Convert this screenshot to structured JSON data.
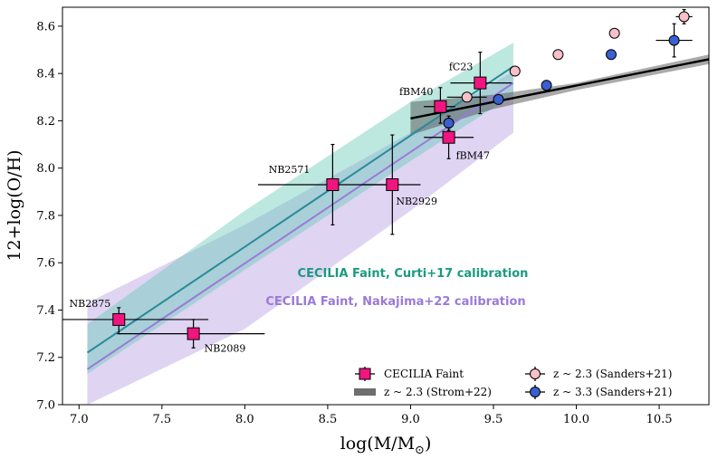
{
  "chart_data": {
    "type": "scatter",
    "xlabel": "log(M/M",
    "xlabel_sub": "⊙",
    "xlabel_close": ")",
    "ylabel": "12+log(O/H)",
    "xlim": [
      6.9,
      10.8
    ],
    "ylim": [
      7.0,
      8.68
    ],
    "xticks": [
      "7.0",
      "7.5",
      "8.0",
      "8.5",
      "9.0",
      "9.5",
      "10.0",
      "10.5"
    ],
    "yticks": [
      "7.0",
      "7.2",
      "7.4",
      "7.6",
      "7.8",
      "8.0",
      "8.2",
      "8.4",
      "8.6"
    ],
    "colors": {
      "cecilia": "#f0157f",
      "curti": "#1a9a80",
      "curti_line": "#2a8a9a",
      "nakajima": "#9a7ad8",
      "strom": "#555555",
      "sanders23": "#f8c0c8",
      "sanders33": "#3a5fd0"
    },
    "cecilia_points": [
      {
        "label": "NB2875",
        "x": 7.24,
        "y": 7.36,
        "xerr": [
          0.34,
          0.54
        ],
        "yerr": [
          0.06,
          0.05
        ]
      },
      {
        "label": "NB2089",
        "x": 7.69,
        "y": 7.3,
        "xerr": [
          0.45,
          0.43
        ],
        "yerr": [
          0.06,
          0.06
        ]
      },
      {
        "label": "NB2571",
        "x": 8.53,
        "y": 7.93,
        "xerr": [
          0.45,
          0.36
        ],
        "yerr": [
          0.17,
          0.17
        ]
      },
      {
        "label": "NB2929",
        "x": 8.89,
        "y": 7.93,
        "xerr": [
          0.18,
          0.17
        ],
        "yerr": [
          0.21,
          0.21
        ]
      },
      {
        "label": "fBM40",
        "x": 9.18,
        "y": 8.26,
        "xerr": [
          0.1,
          0.09
        ],
        "yerr": [
          0.07,
          0.08
        ]
      },
      {
        "label": "fBM47",
        "x": 9.23,
        "y": 8.13,
        "xerr": [
          0.15,
          0.15
        ],
        "yerr": [
          0.09,
          0.04
        ]
      },
      {
        "label": "fC23",
        "x": 9.42,
        "y": 8.36,
        "xerr": [
          0.18,
          0.19
        ],
        "yerr": [
          0.13,
          0.13
        ]
      }
    ],
    "sanders23": [
      {
        "x": 9.34,
        "y": 8.3,
        "xerr": [
          0.12,
          0.12
        ],
        "yerr": [
          0.01,
          0.01
        ]
      },
      {
        "x": 9.63,
        "y": 8.41,
        "xerr": [
          0.0,
          0.0
        ],
        "yerr": [
          0.01,
          0.01
        ]
      },
      {
        "x": 9.89,
        "y": 8.48,
        "xerr": [
          0.0,
          0.0
        ],
        "yerr": [
          0.01,
          0.01
        ]
      },
      {
        "x": 10.23,
        "y": 8.57,
        "xerr": [
          0.0,
          0.0
        ],
        "yerr": [
          0.01,
          0.01
        ]
      },
      {
        "x": 10.65,
        "y": 8.64,
        "xerr": [
          0.05,
          0.05
        ],
        "yerr": [
          0.03,
          0.03
        ]
      }
    ],
    "sanders33": [
      {
        "x": 9.23,
        "y": 8.19,
        "xerr": [
          0.0,
          0.0
        ],
        "yerr": [
          0.03,
          0.03
        ]
      },
      {
        "x": 9.53,
        "y": 8.29,
        "xerr": [
          0.0,
          0.0
        ],
        "yerr": [
          0.01,
          0.01
        ]
      },
      {
        "x": 9.82,
        "y": 8.35,
        "xerr": [
          0.0,
          0.0
        ],
        "yerr": [
          0.02,
          0.02
        ]
      },
      {
        "x": 10.21,
        "y": 8.48,
        "xerr": [
          0.0,
          0.0
        ],
        "yerr": [
          0.01,
          0.01
        ]
      },
      {
        "x": 10.59,
        "y": 8.54,
        "xerr": [
          0.11,
          0.11
        ],
        "yerr": [
          0.07,
          0.07
        ]
      }
    ],
    "strom_line": {
      "x": [
        9.0,
        10.8
      ],
      "y": [
        8.21,
        8.46
      ]
    },
    "strom_band_upper": {
      "x": [
        9.0,
        9.5,
        10.0,
        10.8
      ],
      "y": [
        8.28,
        8.31,
        8.36,
        8.48
      ]
    },
    "strom_band_lower": {
      "x": [
        9.0,
        9.5,
        10.0,
        10.8
      ],
      "y": [
        8.14,
        8.25,
        8.33,
        8.44
      ]
    },
    "curti_line": {
      "x": [
        7.05,
        9.62
      ],
      "y": [
        7.22,
        8.43
      ]
    },
    "curti_band_upper": {
      "x": [
        7.05,
        8.0,
        9.0,
        9.62
      ],
      "y": [
        7.34,
        7.82,
        8.28,
        8.53
      ]
    },
    "curti_band_lower": {
      "x": [
        7.05,
        8.0,
        9.0,
        9.62
      ],
      "y": [
        7.13,
        7.57,
        8.03,
        8.31
      ]
    },
    "nakajima_line": {
      "x": [
        7.05,
        9.62
      ],
      "y": [
        7.15,
        8.36
      ]
    },
    "nakajima_band_upper": {
      "x": [
        7.05,
        8.0,
        9.0,
        9.62
      ],
      "y": [
        7.43,
        7.76,
        8.15,
        8.41
      ]
    },
    "nakajima_band_lower": {
      "x": [
        7.05,
        8.0,
        9.0,
        9.62
      ],
      "y": [
        7.0,
        7.32,
        7.82,
        8.15
      ]
    },
    "annotations": {
      "curti": "CECILIA Faint, Curti+17 calibration",
      "nakajima": "CECILIA Faint, Nakajima+22 calibration"
    },
    "legend": {
      "placement": "lower-right",
      "cecilia": "CECILIA Faint",
      "strom": "z ~ 2.3 (Strom+22)",
      "sanders23": "z ~ 2.3 (Sanders+21)",
      "sanders33": "z ~ 3.3 (Sanders+21)"
    }
  }
}
